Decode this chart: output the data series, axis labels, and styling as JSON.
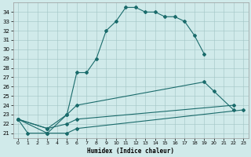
{
  "xlabel": "Humidex (Indice chaleur)",
  "bg_color": "#d0eaea",
  "grid_color": "#a0c4c4",
  "line_color": "#1a6b6b",
  "xlim": [
    -0.5,
    23.5
  ],
  "ylim": [
    20.5,
    35.0
  ],
  "xticks": [
    0,
    1,
    2,
    3,
    4,
    5,
    6,
    7,
    8,
    9,
    10,
    11,
    12,
    13,
    14,
    15,
    16,
    17,
    18,
    19,
    20,
    21,
    22,
    23
  ],
  "yticks": [
    21,
    22,
    23,
    24,
    25,
    26,
    27,
    28,
    29,
    30,
    31,
    32,
    33,
    34
  ],
  "series": [
    {
      "x": [
        0,
        1,
        3,
        5,
        6,
        7,
        8,
        9,
        10,
        11,
        12,
        13,
        14,
        15,
        16,
        17,
        18,
        19
      ],
      "y": [
        22.5,
        21.0,
        21.0,
        23.0,
        27.5,
        27.5,
        29.0,
        32.0,
        33.0,
        34.5,
        34.5,
        34.0,
        34.0,
        33.5,
        33.5,
        33.0,
        31.5,
        29.5
      ]
    },
    {
      "x": [
        0,
        3,
        5,
        6,
        19,
        20,
        22
      ],
      "y": [
        22.5,
        21.5,
        23.0,
        24.0,
        26.5,
        25.5,
        23.5
      ]
    },
    {
      "x": [
        0,
        3,
        5,
        6,
        22
      ],
      "y": [
        22.5,
        21.5,
        22.0,
        22.5,
        24.0
      ]
    },
    {
      "x": [
        0,
        3,
        5,
        6,
        23
      ],
      "y": [
        22.5,
        21.0,
        21.0,
        21.5,
        23.5
      ]
    }
  ]
}
